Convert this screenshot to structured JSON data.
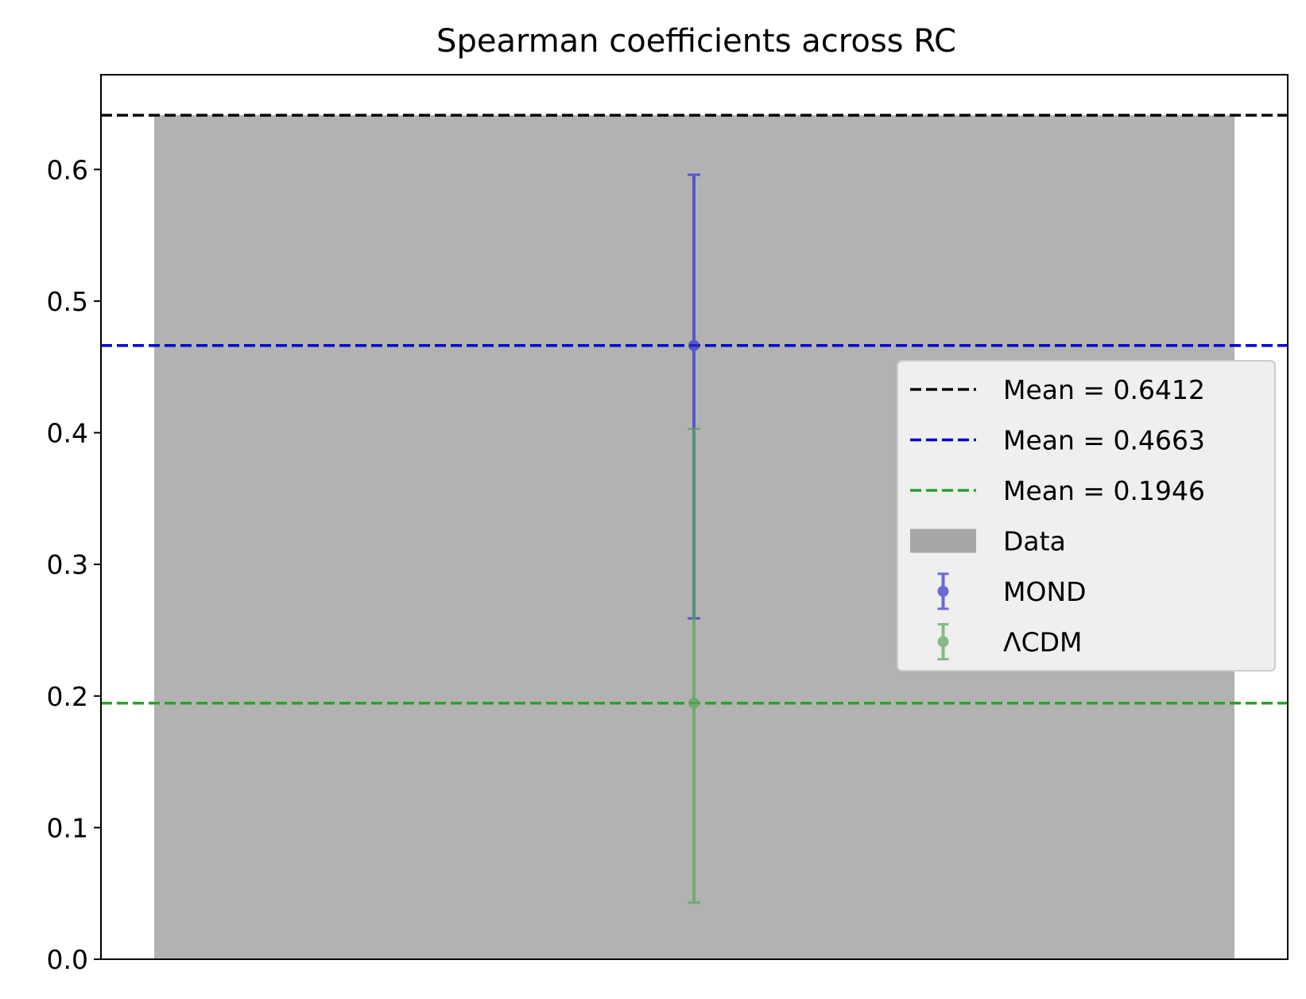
{
  "chart_data": {
    "type": "bar",
    "title": "Spearman coefficients across RC",
    "xlabel": "",
    "ylabel": "",
    "ylim": [
      0,
      0.672
    ],
    "yticks": [
      0.0,
      0.1,
      0.2,
      0.3,
      0.4,
      0.5,
      0.6
    ],
    "ytick_labels": [
      "0.0",
      "0.1",
      "0.2",
      "0.3",
      "0.4",
      "0.5",
      "0.6"
    ],
    "xticks_visible": false,
    "grid": false,
    "bar": {
      "name": "Data",
      "value": 0.6412,
      "color": "#b2b2b2"
    },
    "mean_lines": [
      {
        "label": "Mean = 0.6412",
        "value": 0.6412,
        "color": "#000000"
      },
      {
        "label": "Mean = 0.4663",
        "value": 0.4663,
        "color": "#0000cc"
      },
      {
        "label": "Mean = 0.1946",
        "value": 0.1946,
        "color": "#2ca02c"
      }
    ],
    "errorbars": [
      {
        "name": "MOND",
        "y": 0.4663,
        "lower": 0.259,
        "upper": 0.596,
        "color": "#3333cc"
      },
      {
        "name": "ΛCDM",
        "y": 0.1946,
        "lower": 0.043,
        "upper": 0.403,
        "color": "#5aa65a"
      }
    ],
    "legend": {
      "position": "center-right",
      "entries": [
        {
          "kind": "dashed-line",
          "label": "Mean = 0.6412",
          "color": "#000000"
        },
        {
          "kind": "dashed-line",
          "label": "Mean = 0.4663",
          "color": "#0000cc"
        },
        {
          "kind": "dashed-line",
          "label": "Mean = 0.1946",
          "color": "#2ca02c"
        },
        {
          "kind": "patch",
          "label": "Data",
          "color": "#a6a6a6"
        },
        {
          "kind": "errorbar",
          "label": "MOND",
          "color": "#3333cc"
        },
        {
          "kind": "errorbar",
          "label": "ΛCDM",
          "color": "#5aa65a"
        }
      ]
    }
  }
}
